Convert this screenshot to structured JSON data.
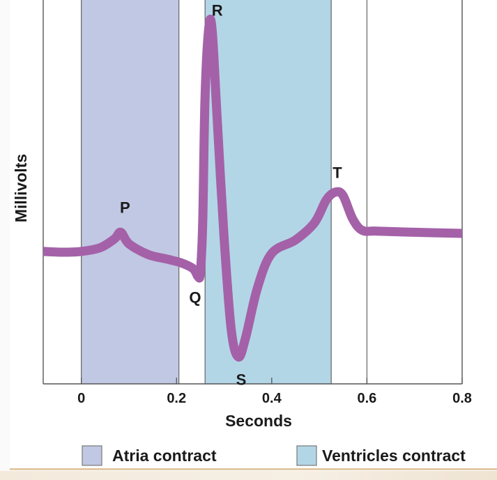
{
  "chart_data": {
    "type": "line",
    "xlabel": "Seconds",
    "ylabel": "Millivolts",
    "xlim": [
      -0.08,
      0.8
    ],
    "ylim": [
      0,
      1
    ],
    "x_ticks": [
      {
        "value": 0,
        "label": "0"
      },
      {
        "value": 0.2,
        "label": "0.2"
      },
      {
        "value": 0.4,
        "label": "0.4"
      },
      {
        "value": 0.6,
        "label": "0.6"
      },
      {
        "value": 0.8,
        "label": "0.8"
      }
    ],
    "vertical_lines_x": [
      0,
      0.205,
      0.26,
      0.525,
      0.6
    ],
    "shaded_regions": [
      {
        "name": "Atria contract",
        "x_start": 0,
        "x_end": 0.205,
        "color": "#c1c8e3"
      },
      {
        "name": "Ventricles contract",
        "x_start": 0.26,
        "x_end": 0.525,
        "color": "#b3d6e6"
      }
    ],
    "series": [
      {
        "color": "#a461a8",
        "points": [
          [
            -0.08,
            0.345
          ],
          [
            -0.04,
            0.343
          ],
          [
            0.0,
            0.345
          ],
          [
            0.04,
            0.355
          ],
          [
            0.07,
            0.378
          ],
          [
            0.083,
            0.395
          ],
          [
            0.1,
            0.365
          ],
          [
            0.14,
            0.337
          ],
          [
            0.18,
            0.325
          ],
          [
            0.21,
            0.315
          ],
          [
            0.235,
            0.3
          ],
          [
            0.245,
            0.28
          ],
          [
            0.25,
            0.29
          ],
          [
            0.255,
            0.42
          ],
          [
            0.26,
            0.75
          ],
          [
            0.268,
            0.93
          ],
          [
            0.275,
            0.92
          ],
          [
            0.285,
            0.7
          ],
          [
            0.3,
            0.38
          ],
          [
            0.315,
            0.14
          ],
          [
            0.33,
            0.07
          ],
          [
            0.345,
            0.12
          ],
          [
            0.37,
            0.25
          ],
          [
            0.4,
            0.34
          ],
          [
            0.45,
            0.375
          ],
          [
            0.49,
            0.42
          ],
          [
            0.515,
            0.48
          ],
          [
            0.535,
            0.5
          ],
          [
            0.55,
            0.49
          ],
          [
            0.57,
            0.43
          ],
          [
            0.59,
            0.4
          ],
          [
            0.62,
            0.398
          ],
          [
            0.7,
            0.395
          ],
          [
            0.8,
            0.392
          ]
        ]
      }
    ],
    "wave_labels": [
      {
        "label": "P",
        "x": 0.083,
        "y": 0.395
      },
      {
        "label": "Q",
        "x": 0.245,
        "y": 0.28
      },
      {
        "label": "R",
        "x": 0.268,
        "y": 0.93
      },
      {
        "label": "S",
        "x": 0.33,
        "y": 0.07
      },
      {
        "label": "T",
        "x": 0.535,
        "y": 0.5
      }
    ],
    "legend": {
      "placement": "bottom",
      "items": [
        {
          "label": "Atria contract",
          "color": "#c1c8e3"
        },
        {
          "label": "Ventricles contract",
          "color": "#b3d6e6"
        }
      ]
    },
    "grid": false
  }
}
